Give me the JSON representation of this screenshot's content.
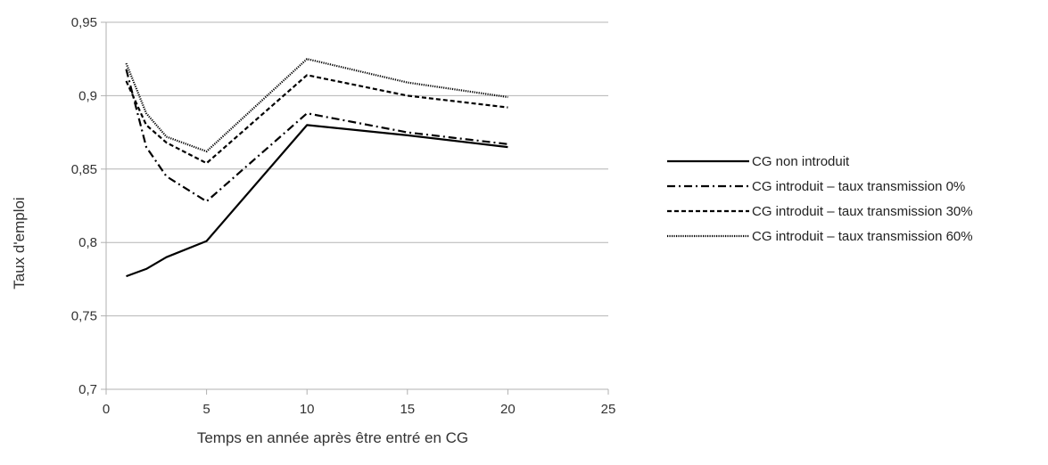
{
  "chart_data": {
    "type": "line",
    "title": "",
    "xlabel": "Temps en année après être entré en CG",
    "ylabel": "Taux d'emploi",
    "xlim": [
      0,
      25
    ],
    "ylim": [
      0.7,
      0.95
    ],
    "x_ticks": [
      0,
      5,
      10,
      15,
      20,
      25
    ],
    "x_tick_labels": [
      "0",
      "5",
      "10",
      "15",
      "20",
      "25"
    ],
    "y_ticks": [
      0.7,
      0.75,
      0.8,
      0.85,
      0.9,
      0.95
    ],
    "y_tick_labels": [
      "0,7",
      "0,75",
      "0,8",
      "0,85",
      "0,9",
      "0,95"
    ],
    "grid": "horizontal",
    "legend_position": "right",
    "x": [
      1,
      2,
      3,
      5,
      10,
      15,
      20
    ],
    "series": [
      {
        "name": "CG non introduit",
        "style": "solid",
        "color": "#000000",
        "values": [
          0.777,
          0.782,
          0.79,
          0.801,
          0.88,
          0.873,
          0.865
        ]
      },
      {
        "name": "CG introduit – taux transmission 0%",
        "style": "dashdot",
        "color": "#000000",
        "values": [
          0.918,
          0.865,
          0.845,
          0.828,
          0.888,
          0.875,
          0.867
        ]
      },
      {
        "name": "CG introduit – taux transmission 30%",
        "style": "dashed",
        "color": "#000000",
        "values": [
          0.91,
          0.88,
          0.868,
          0.854,
          0.914,
          0.9,
          0.892
        ]
      },
      {
        "name": "CG introduit – taux transmission 60%",
        "style": "dotted",
        "color": "#000000",
        "values": [
          0.922,
          0.888,
          0.872,
          0.862,
          0.925,
          0.909,
          0.899
        ]
      }
    ]
  }
}
